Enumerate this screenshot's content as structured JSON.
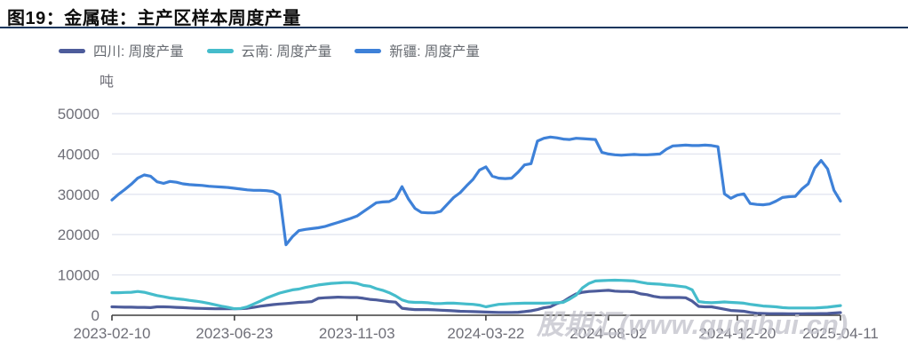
{
  "header": {
    "title": "图19：金属硅：主产区样本周度产量"
  },
  "watermark": "股期汇(www.guqihui.cn)",
  "axis_style": {
    "grid_color": "#e2e6f0",
    "axis_color": "#3f3f3f",
    "tick_label_color": "#6f6f78",
    "tick_font_size": 17
  },
  "chart_data": {
    "type": "line",
    "title": "图19：金属硅：主产区样本周度产量",
    "xlabel": "",
    "ylabel": "吨",
    "ylim": [
      0,
      50000
    ],
    "yticks": [
      0,
      10000,
      20000,
      30000,
      40000,
      50000
    ],
    "grid": true,
    "legend_position": "top",
    "x_unit": "week",
    "x_range": [
      "2023-02-10",
      "2025-04-11"
    ],
    "x_tick_labels": [
      "2023-02-10",
      "2023-06-23",
      "2023-11-03",
      "2024-03-22",
      "2024-08-02",
      "2024-12-20",
      "2025-04-11"
    ],
    "x_tick_weeks": [
      0,
      19,
      38,
      58,
      77,
      97,
      113
    ],
    "series": [
      {
        "name": "四川: 周度产量",
        "color": "#4d5c9b",
        "values": [
          2100,
          2050,
          2000,
          2000,
          1950,
          1950,
          1900,
          2100,
          2100,
          2050,
          1950,
          1900,
          1800,
          1750,
          1700,
          1650,
          1600,
          1600,
          1600,
          1600,
          1650,
          1750,
          1950,
          2250,
          2450,
          2650,
          2800,
          2900,
          3050,
          3200,
          3250,
          3400,
          4200,
          4350,
          4400,
          4500,
          4450,
          4400,
          4400,
          4200,
          3950,
          3800,
          3600,
          3400,
          3250,
          1750,
          1550,
          1400,
          1400,
          1400,
          1350,
          1250,
          1200,
          1100,
          1000,
          950,
          900,
          850,
          800,
          750,
          700,
          700,
          700,
          750,
          900,
          1100,
          1400,
          1850,
          2100,
          2900,
          3400,
          4400,
          5300,
          5700,
          5900,
          6000,
          6100,
          6200,
          6000,
          5900,
          5900,
          5800,
          5300,
          5100,
          4700,
          4450,
          4400,
          4400,
          4400,
          4350,
          3500,
          2200,
          2100,
          2100,
          1800,
          1500,
          1200,
          1100,
          1000,
          700,
          500,
          450,
          400,
          400,
          400,
          380,
          380,
          380,
          400,
          400,
          420,
          450,
          550,
          650
        ]
      },
      {
        "name": "云南: 周度产量",
        "color": "#45bccb",
        "values": [
          5600,
          5600,
          5650,
          5700,
          5900,
          5700,
          5300,
          4900,
          4600,
          4300,
          4100,
          3950,
          3700,
          3500,
          3250,
          2950,
          2600,
          2250,
          1950,
          1600,
          1700,
          2100,
          2800,
          3500,
          4300,
          4900,
          5500,
          5900,
          6300,
          6500,
          6900,
          7200,
          7500,
          7700,
          7900,
          8000,
          8100,
          8100,
          7900,
          7400,
          7200,
          6600,
          6200,
          5600,
          4800,
          3800,
          3300,
          3200,
          3200,
          3100,
          2900,
          2900,
          3000,
          3000,
          2900,
          2800,
          2700,
          2500,
          2100,
          2400,
          2700,
          2800,
          2900,
          2950,
          3000,
          3000,
          3000,
          3000,
          3050,
          3100,
          3200,
          4000,
          5000,
          6800,
          7900,
          8500,
          8600,
          8650,
          8700,
          8650,
          8600,
          8500,
          8200,
          7900,
          7800,
          7700,
          7500,
          7400,
          7200,
          7000,
          6300,
          3400,
          3200,
          3100,
          3200,
          3300,
          3200,
          3100,
          3000,
          2700,
          2500,
          2300,
          2200,
          2100,
          1900,
          1800,
          1800,
          1800,
          1800,
          1800,
          1900,
          2000,
          2200,
          2400
        ]
      },
      {
        "name": "新疆: 周度产量",
        "color": "#3e81d8",
        "values": [
          28600,
          30000,
          31200,
          32500,
          34000,
          34800,
          34500,
          33100,
          32700,
          33200,
          33000,
          32600,
          32400,
          32300,
          32200,
          32000,
          31900,
          31800,
          31700,
          31500,
          31300,
          31100,
          31000,
          31000,
          30900,
          30700,
          29800,
          17500,
          19500,
          21000,
          21300,
          21500,
          21700,
          22000,
          22500,
          23000,
          23500,
          24000,
          24600,
          25700,
          26800,
          27900,
          28100,
          28200,
          29000,
          31900,
          28800,
          26500,
          25500,
          25400,
          25400,
          25800,
          27500,
          29200,
          30400,
          32100,
          33700,
          36000,
          36800,
          34500,
          34000,
          33900,
          34000,
          35500,
          37300,
          37600,
          43200,
          43900,
          44200,
          44000,
          43700,
          43600,
          43900,
          43800,
          43700,
          43600,
          40400,
          40000,
          39800,
          39700,
          39800,
          39900,
          39800,
          39800,
          39900,
          40000,
          41200,
          42000,
          42100,
          42200,
          42100,
          42100,
          42200,
          42100,
          41800,
          30100,
          29000,
          29800,
          30100,
          27700,
          27500,
          27400,
          27600,
          28300,
          29200,
          29400,
          29500,
          31300,
          32600,
          36500,
          38400,
          36300,
          31000,
          28300
        ]
      }
    ]
  }
}
